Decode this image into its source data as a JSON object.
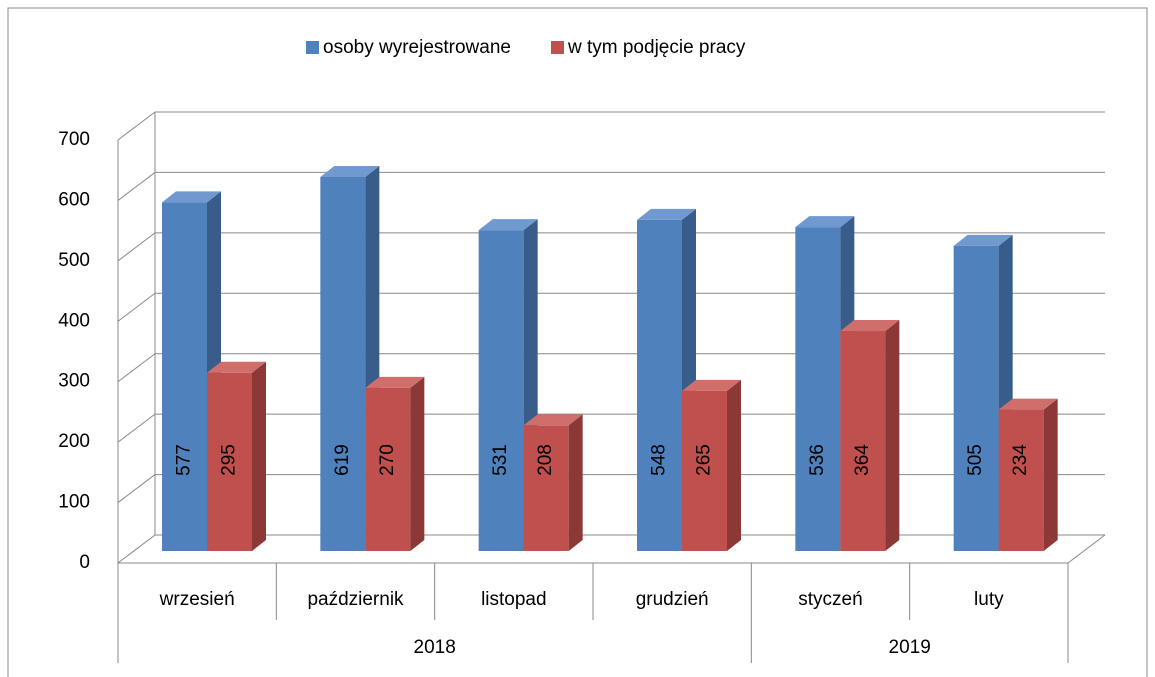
{
  "chart_data": {
    "type": "bar3d",
    "groups": [
      {
        "label": "2018",
        "categories": [
          "wrzesień",
          "październik",
          "listopad",
          "grudzień"
        ]
      },
      {
        "label": "2019",
        "categories": [
          "styczeń",
          "luty"
        ]
      }
    ],
    "series": [
      {
        "name": "osoby wyrejestrowane",
        "color": "#4f81bd",
        "side": "#385d8a",
        "top": "#6f99cf",
        "values": [
          577,
          619,
          531,
          548,
          536,
          505
        ]
      },
      {
        "name": "w tym podjęcie pracy",
        "color": "#c0504d",
        "side": "#8c3836",
        "top": "#cf6e6b",
        "values": [
          295,
          270,
          208,
          265,
          364,
          234
        ]
      }
    ],
    "ylim": [
      0,
      700
    ],
    "yticks": [
      0,
      100,
      200,
      300,
      400,
      500,
      600,
      700
    ],
    "grid": true,
    "legend": "top"
  }
}
